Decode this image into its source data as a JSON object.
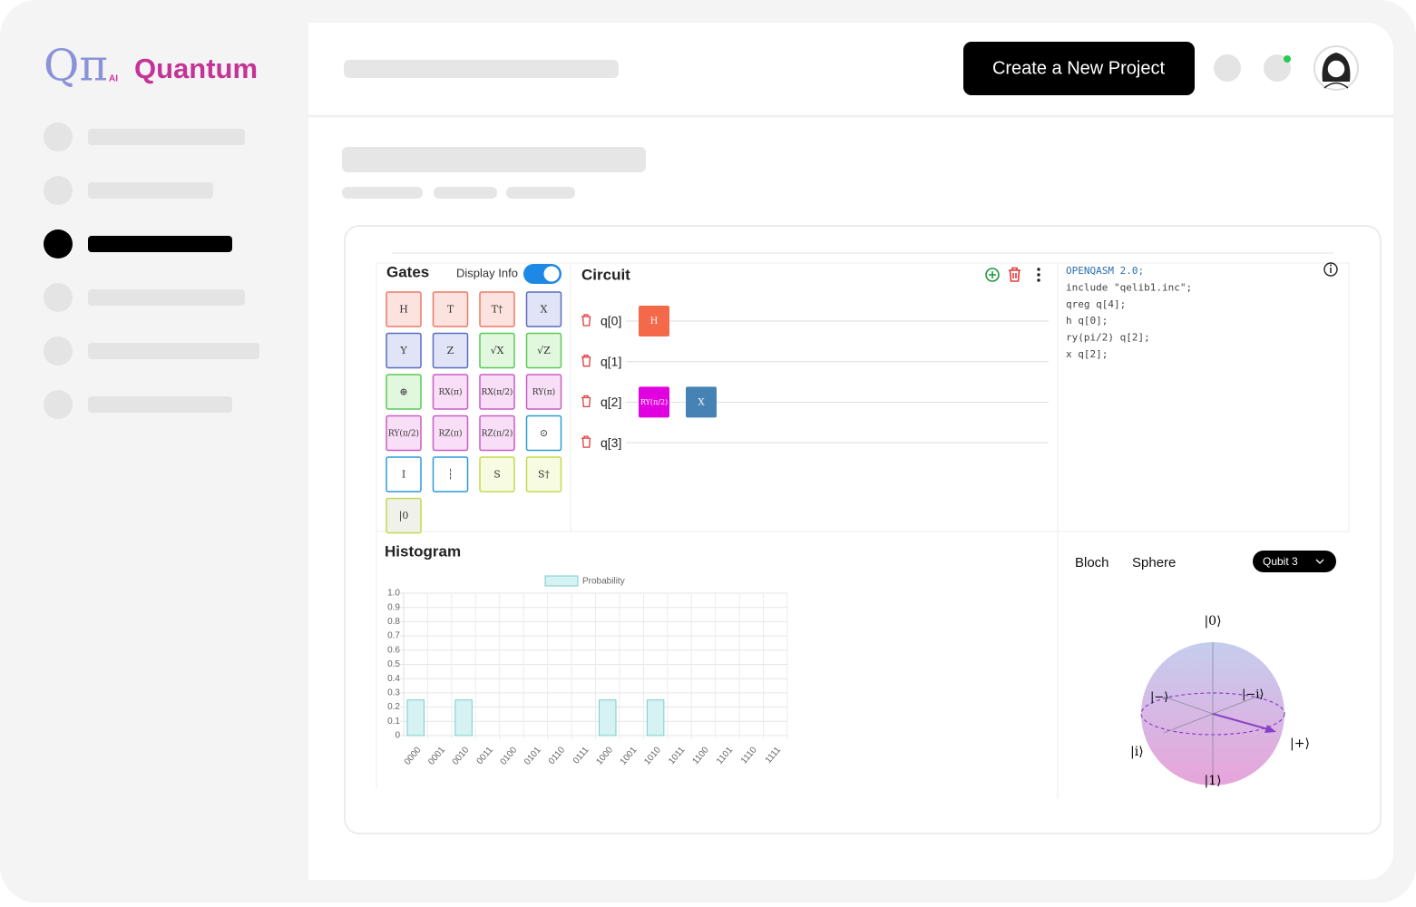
{
  "logo": {
    "mark": "Qπ",
    "sub": "AI",
    "name": "Quantum"
  },
  "header": {
    "button": "Create a New Project"
  },
  "gates_panel": {
    "title": "Gates",
    "toggle_label": "Display Info",
    "toggle_on": true,
    "gates": [
      {
        "label": "H",
        "fill": "#fde3df",
        "border": "#ec7a66"
      },
      {
        "label": "T",
        "fill": "#fde3df",
        "border": "#ec7a66"
      },
      {
        "label": "T†",
        "fill": "#fde3df",
        "border": "#ec7a66"
      },
      {
        "label": "X",
        "fill": "#e0e4f6",
        "border": "#5a6cc0"
      },
      {
        "label": "Y",
        "fill": "#e0e4f6",
        "border": "#5a6cc0"
      },
      {
        "label": "Z",
        "fill": "#e0e4f6",
        "border": "#5a6cc0"
      },
      {
        "label": "√X",
        "fill": "#e1f8de",
        "border": "#5cc858"
      },
      {
        "label": "√Z",
        "fill": "#e1f8de",
        "border": "#5cc858"
      },
      {
        "label": "⊕",
        "fill": "#e1f8de",
        "border": "#5cc858"
      },
      {
        "label": "RX(π)",
        "fill": "#f8def6",
        "border": "#c85ec4"
      },
      {
        "label": "RX(π/2)",
        "fill": "#f8def6",
        "border": "#c85ec4"
      },
      {
        "label": "RY(π)",
        "fill": "#f8def6",
        "border": "#c85ec4"
      },
      {
        "label": "RY(π/2)",
        "fill": "#f8def6",
        "border": "#c85ec4"
      },
      {
        "label": "RZ(π)",
        "fill": "#f8def6",
        "border": "#c85ec4"
      },
      {
        "label": "RZ(π/2)",
        "fill": "#f8def6",
        "border": "#c85ec4"
      },
      {
        "label": "⊙",
        "fill": "#ffffff",
        "border": "#2c9ad8"
      },
      {
        "label": "I",
        "fill": "#ffffff",
        "border": "#2c9ad8"
      },
      {
        "label": "┆",
        "fill": "#ffffff",
        "border": "#2c9ad8"
      },
      {
        "label": "S",
        "fill": "#f7fbe2",
        "border": "#c5d94c"
      },
      {
        "label": "S†",
        "fill": "#f7fbe2",
        "border": "#c5d94c"
      },
      {
        "label": "|0",
        "fill": "#f1f1ec",
        "border": "#c5d94c"
      }
    ]
  },
  "circuit": {
    "title": "Circuit",
    "qubits": [
      {
        "label": "q[0]",
        "gates": [
          {
            "label": "H",
            "color": "#f4694a"
          }
        ]
      },
      {
        "label": "q[1]",
        "gates": []
      },
      {
        "label": "q[2]",
        "gates": [
          {
            "label": "RY(π/2)",
            "color": "#e000e0"
          },
          {
            "label": "X",
            "color": "#4682b4"
          }
        ]
      },
      {
        "label": "q[3]",
        "gates": []
      }
    ]
  },
  "code": {
    "lines": [
      "OPENQASM 2.0;",
      "include \"qelib1.inc\";",
      "qreg q[4];",
      "h q[0];",
      "ry(pi/2) q[2];",
      "x q[2];"
    ]
  },
  "chart_data": {
    "type": "bar",
    "title": "Histogram",
    "legend": "Probability",
    "categories": [
      "0000",
      "0001",
      "0010",
      "0011",
      "0100",
      "0101",
      "0110",
      "0111",
      "1000",
      "1001",
      "1010",
      "1011",
      "1100",
      "1101",
      "1110",
      "1111"
    ],
    "values": [
      0.25,
      0,
      0.25,
      0,
      0,
      0,
      0,
      0,
      0.25,
      0,
      0.25,
      0,
      0,
      0,
      0,
      0
    ],
    "color": "#d6f2f2",
    "border_color": "#7ccccc",
    "ylim": [
      0,
      1
    ],
    "yticks": [
      0,
      0.1,
      0.2,
      0.3,
      0.4,
      0.5,
      0.6,
      0.7,
      0.8,
      0.9,
      {
        "value": 1,
        "label": "1.0"
      }
    ],
    "grid": true
  },
  "bloch": {
    "title_1": "Bloch",
    "title_2": "Sphere",
    "selector": "Qubit 3",
    "labels": {
      "zero": "|0⟩",
      "one": "|1⟩",
      "plus": "|+⟩",
      "minus": "|−⟩",
      "i": "|i⟩",
      "minus_i": "|−i⟩"
    }
  }
}
